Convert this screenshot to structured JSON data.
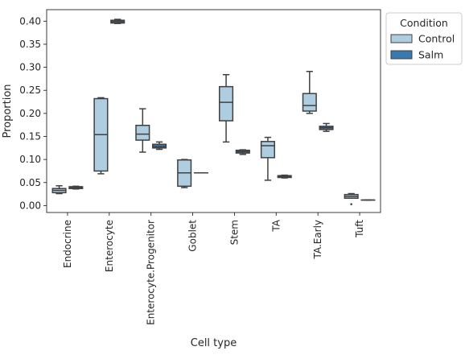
{
  "chart_data": {
    "type": "box",
    "xlabel": "Cell type",
    "ylabel": "Proportion",
    "ylim": [
      -0.015,
      0.425
    ],
    "yticks": [
      0.0,
      0.05,
      0.1,
      0.15,
      0.2,
      0.25,
      0.3,
      0.35,
      0.4
    ],
    "ytick_labels": [
      "0.00",
      "0.05",
      "0.10",
      "0.15",
      "0.20",
      "0.25",
      "0.30",
      "0.35",
      "0.40"
    ],
    "categories": [
      "Endocrine",
      "Enterocyte",
      "Enterocyte.Progenitor",
      "Goblet",
      "Stem",
      "TA",
      "TA.Early",
      "Tuft"
    ],
    "legend": {
      "title": "Condition",
      "position": "outside-right-top",
      "entries": [
        "Control",
        "Salm"
      ]
    },
    "series": [
      {
        "name": "Control",
        "color": "#aecde1",
        "boxes": [
          {
            "min": 0.026,
            "q1": 0.028,
            "median": 0.033,
            "q3": 0.037,
            "max": 0.043,
            "outliers": []
          },
          {
            "min": 0.069,
            "q1": 0.075,
            "median": 0.154,
            "q3": 0.232,
            "max": 0.234,
            "outliers": []
          },
          {
            "min": 0.116,
            "q1": 0.142,
            "median": 0.155,
            "q3": 0.174,
            "max": 0.21,
            "outliers": []
          },
          {
            "min": 0.039,
            "q1": 0.042,
            "median": 0.071,
            "q3": 0.099,
            "max": 0.1,
            "outliers": []
          },
          {
            "min": 0.138,
            "q1": 0.184,
            "median": 0.224,
            "q3": 0.258,
            "max": 0.284,
            "outliers": []
          },
          {
            "min": 0.055,
            "q1": 0.104,
            "median": 0.13,
            "q3": 0.139,
            "max": 0.148,
            "outliers": []
          },
          {
            "min": 0.2,
            "q1": 0.205,
            "median": 0.217,
            "q3": 0.243,
            "max": 0.291,
            "outliers": []
          },
          {
            "min": 0.016,
            "q1": 0.016,
            "median": 0.02,
            "q3": 0.024,
            "max": 0.026,
            "outliers": [
              0.003
            ]
          }
        ]
      },
      {
        "name": "Salm",
        "color": "#3a78b0",
        "boxes": [
          {
            "min": 0.036,
            "q1": 0.037,
            "median": 0.039,
            "q3": 0.041,
            "max": 0.042,
            "outliers": []
          },
          {
            "min": 0.395,
            "q1": 0.396,
            "median": 0.399,
            "q3": 0.402,
            "max": 0.404,
            "outliers": []
          },
          {
            "min": 0.122,
            "q1": 0.125,
            "median": 0.128,
            "q3": 0.133,
            "max": 0.138,
            "outliers": []
          },
          {
            "min": 0.071,
            "q1": 0.071,
            "median": 0.071,
            "q3": 0.071,
            "max": 0.071,
            "outliers": []
          },
          {
            "min": 0.111,
            "q1": 0.114,
            "median": 0.117,
            "q3": 0.12,
            "max": 0.121,
            "outliers": []
          },
          {
            "min": 0.06,
            "q1": 0.061,
            "median": 0.063,
            "q3": 0.065,
            "max": 0.066,
            "outliers": []
          },
          {
            "min": 0.161,
            "q1": 0.165,
            "median": 0.169,
            "q3": 0.172,
            "max": 0.178,
            "outliers": []
          },
          {
            "min": 0.012,
            "q1": 0.012,
            "median": 0.012,
            "q3": 0.012,
            "max": 0.012,
            "outliers": []
          }
        ]
      }
    ],
    "grid": false
  }
}
